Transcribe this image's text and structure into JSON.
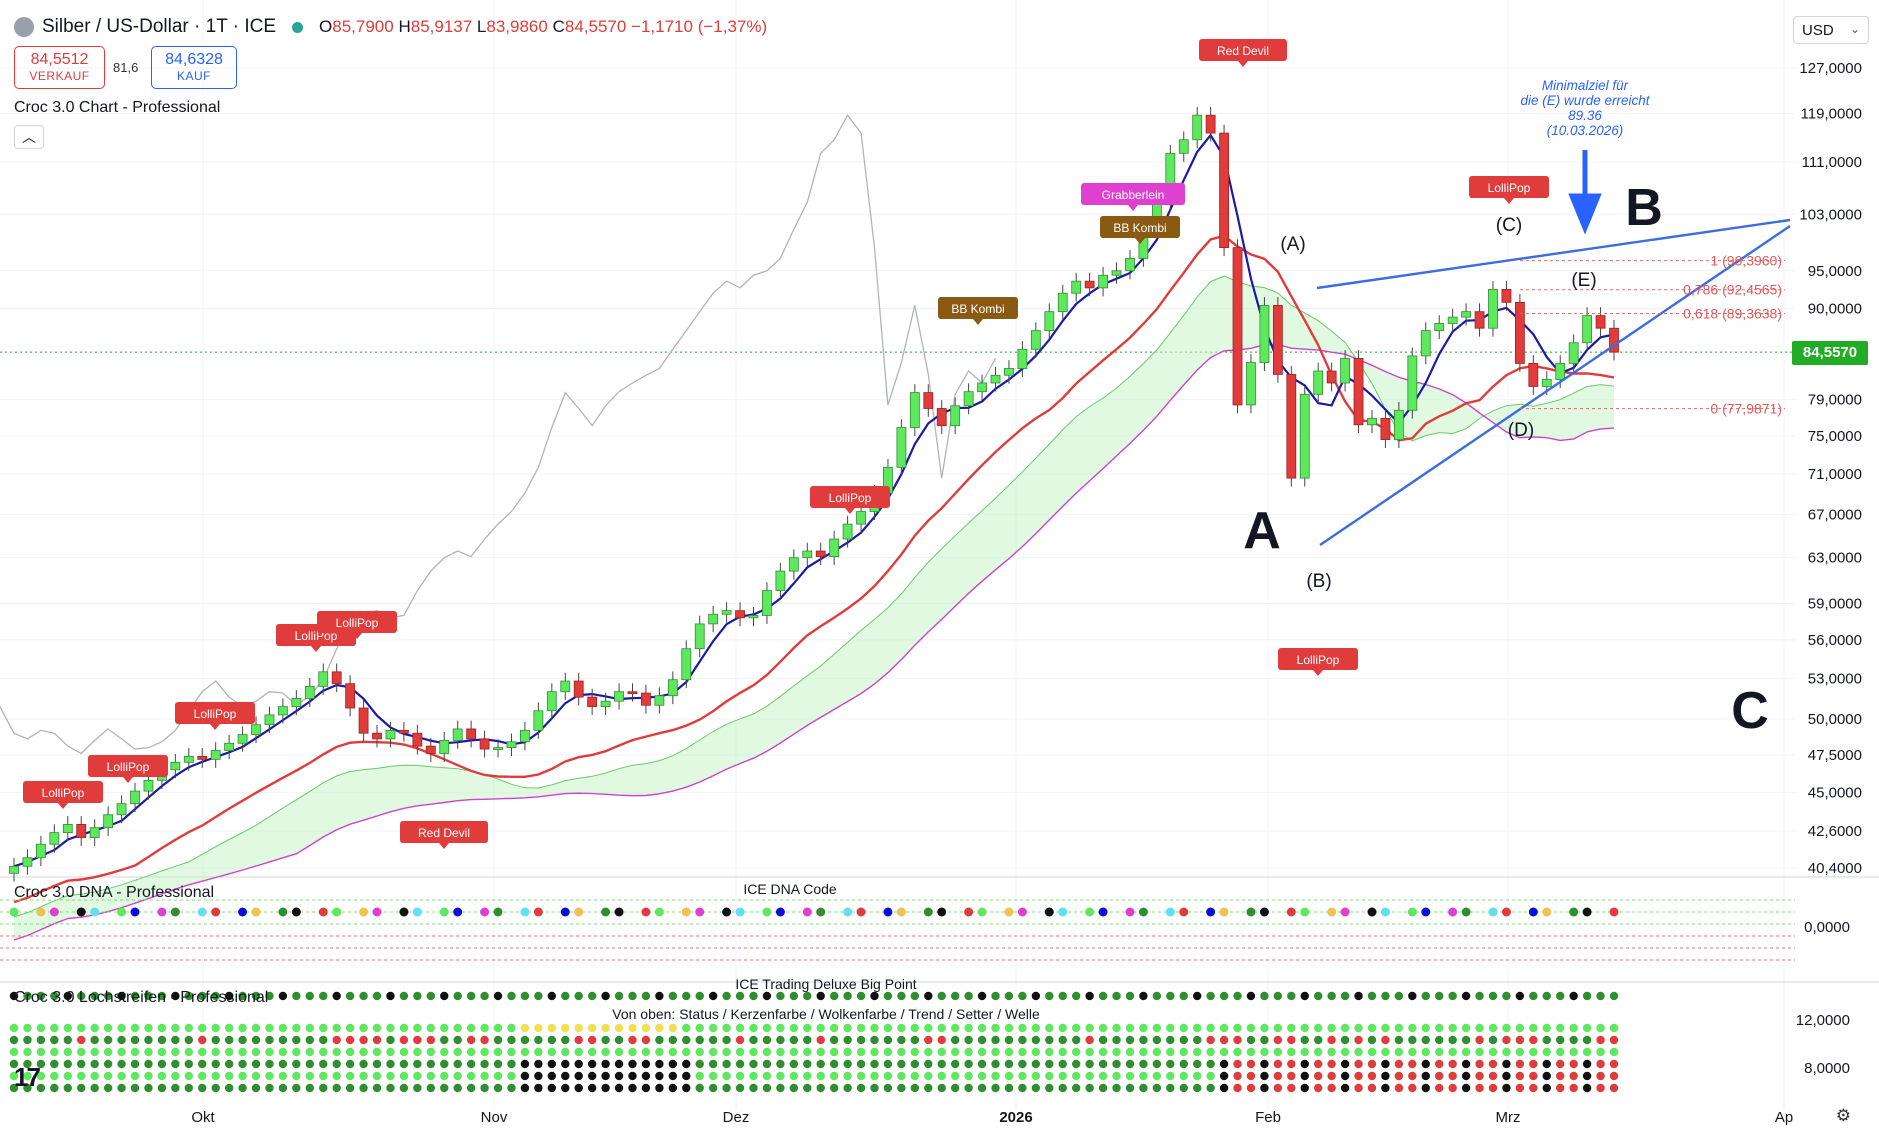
{
  "header": {
    "symbol": "Silber / US-Dollar · 1T · ICE",
    "open_label": "O",
    "open": "85,7900",
    "high_label": "H",
    "high": "85,9137",
    "low_label": "L",
    "low": "83,9860",
    "close_label": "C",
    "close": "84,5570",
    "change": "−1,1710 (−1,37%)"
  },
  "quotes": {
    "sell_price": "84,5512",
    "sell_label": "VERKAUF",
    "spread": "81,6",
    "buy_price": "84,6328",
    "buy_label": "KAUF"
  },
  "indicator_title": "Croc 3.0 Chart - Professional",
  "currency": "USD",
  "last_price_tag": "84,5570",
  "settings_icon": "gear-icon",
  "colors": {
    "bull": "#5ee85e",
    "bear": "#e03c3c",
    "tenkan": "#1a1aa6",
    "kijun": "#e03c3c",
    "cloud": "#c9f2c9",
    "accent": "#2962ff",
    "last_price": "#22ab24"
  },
  "chart_data": {
    "type": "candlestick",
    "y_ticks": [
      "127,0000",
      "119,0000",
      "111,0000",
      "103,0000",
      "95,0000",
      "90,0000",
      "84,5570",
      "79,0000",
      "75,0000",
      "71,0000",
      "67,0000",
      "63,0000",
      "59,0000",
      "56,0000",
      "53,0000",
      "50,0000",
      "47,5000",
      "45,0000",
      "42,6000",
      "40,4000"
    ],
    "y_axis_scale": "log",
    "x_ticks": [
      {
        "label": "Okt",
        "bold": false
      },
      {
        "label": "Nov",
        "bold": false
      },
      {
        "label": "Dez",
        "bold": false
      },
      {
        "label": "2026",
        "bold": true
      },
      {
        "label": "Feb",
        "bold": false
      },
      {
        "label": "Mrz",
        "bold": false
      },
      {
        "label": "Ap",
        "bold": false
      }
    ],
    "last_close": 84.557,
    "closes": [
      40.5,
      41.0,
      41.8,
      42.5,
      43.0,
      42.2,
      42.8,
      43.6,
      44.3,
      45.1,
      45.8,
      46.5,
      47.0,
      47.4,
      47.2,
      47.8,
      48.3,
      48.9,
      49.6,
      50.3,
      50.9,
      51.5,
      52.4,
      53.5,
      52.6,
      50.8,
      49.0,
      48.6,
      49.2,
      49.0,
      48.1,
      47.6,
      48.5,
      49.3,
      48.6,
      47.9,
      48.0,
      48.4,
      49.2,
      50.6,
      52.0,
      52.8,
      51.6,
      50.9,
      51.3,
      52.0,
      51.9,
      51.0,
      51.7,
      52.9,
      55.3,
      57.3,
      58.1,
      58.4,
      57.8,
      58.0,
      60.1,
      61.8,
      63.0,
      63.6,
      63.1,
      64.7,
      66.1,
      67.3,
      69.1,
      71.7,
      75.9,
      79.8,
      78.0,
      76.1,
      78.3,
      79.9,
      80.9,
      81.8,
      82.6,
      84.9,
      87.2,
      89.6,
      92.0,
      93.6,
      92.7,
      94.4,
      95.0,
      96.7,
      100.8,
      104.8,
      112.4,
      114.6,
      118.7,
      115.7,
      98.2,
      78.4,
      83.3,
      90.4,
      81.9,
      70.6,
      79.6,
      82.3,
      80.9,
      83.8,
      76.2,
      76.9,
      74.6,
      77.8,
      84.1,
      87.2,
      88.1,
      88.9,
      89.6,
      87.5,
      92.5,
      90.8,
      83.2,
      80.5,
      81.3,
      83.2,
      85.7,
      89.1,
      87.5,
      84.557
    ],
    "series": [
      {
        "name": "Kijun"
      },
      {
        "name": "Tenkan"
      }
    ],
    "label_tags": [
      {
        "text": "LolliPop",
        "color": "#e03c3c"
      },
      {
        "text": "LolliPop",
        "color": "#e03c3c"
      },
      {
        "text": "LolliPop",
        "color": "#e03c3c"
      },
      {
        "text": "LolliPop",
        "color": "#e03c3c"
      },
      {
        "text": "LolliPop",
        "color": "#e03c3c"
      },
      {
        "text": "Red Devil",
        "color": "#e03c3c"
      },
      {
        "text": "LolliPop",
        "color": "#e03c3c"
      },
      {
        "text": "BB Kombi",
        "color": "#8b5a12"
      },
      {
        "text": "Grabberlein",
        "color": "#e040d0"
      },
      {
        "text": "BB Kombi",
        "color": "#8b5a12"
      },
      {
        "text": "Red Devil",
        "color": "#e03c3c"
      },
      {
        "text": "LolliPop",
        "color": "#e03c3c"
      },
      {
        "text": "LolliPop",
        "color": "#e03c3c"
      }
    ],
    "wave_labels": [
      "(A)",
      "(B)",
      "(C)",
      "(D)",
      "(E)"
    ],
    "big_labels": [
      "A",
      "B",
      "C"
    ],
    "fib_levels": [
      {
        "label": "1 (96,3960)",
        "value": 96.396
      },
      {
        "label": "0,786 (92,4565)",
        "value": 92.4565
      },
      {
        "label": "0,618 (89,3638)",
        "value": 89.3638
      },
      {
        "label": "0 (77,9871)",
        "value": 77.9871
      }
    ],
    "annotation": [
      "Minimalziel für",
      "die (E) wurde erreicht",
      "89.36",
      "(10.03.2026)"
    ]
  },
  "dna_pane": {
    "title": "Croc 3.0 DNA - Professional",
    "center_label": "ICE DNA Code",
    "y_tick": "0,0000"
  },
  "loch_pane": {
    "title": "Croc 3.0 Lochstreifen - Professional",
    "center_label": "ICE Trading Deluxe Big Point",
    "subtitle": "Von oben: Status / Kerzenfarbe / Wolkenfarbe / Trend / Setter / Welle",
    "y_ticks": [
      "12,0000",
      "8,0000"
    ]
  },
  "tv_logo": "17"
}
